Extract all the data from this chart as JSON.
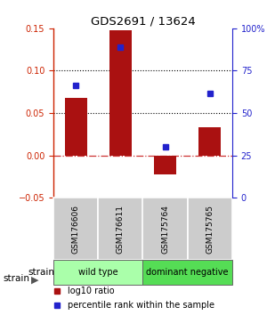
{
  "title": "GDS2691 / 13624",
  "categories": [
    "GSM176606",
    "GSM176611",
    "GSM175764",
    "GSM175765"
  ],
  "log10_ratio": [
    0.068,
    0.148,
    -0.022,
    0.033
  ],
  "percentile_rank": [
    66.5,
    89.0,
    30.0,
    61.5
  ],
  "ylim_left": [
    -0.05,
    0.15
  ],
  "ylim_right": [
    0,
    100
  ],
  "yticks_left": [
    -0.05,
    0,
    0.05,
    0.1,
    0.15
  ],
  "yticks_right": [
    0,
    25,
    50,
    75,
    100
  ],
  "bar_color": "#aa1111",
  "dot_color": "#2222cc",
  "bar_width": 0.5,
  "groups": [
    {
      "label": "wild type",
      "indices": [
        0,
        1
      ],
      "color": "#aaffaa"
    },
    {
      "label": "dominant negative",
      "indices": [
        2,
        3
      ],
      "color": "#55dd55"
    }
  ],
  "strain_label": "strain",
  "legend_bar_label": "log10 ratio",
  "legend_dot_label": "percentile rank within the sample",
  "background_color": "#ffffff",
  "zero_line_color": "#cc3333",
  "dotted_line_color": "#000000",
  "left_axis_color": "#cc2200",
  "right_axis_color": "#2222cc"
}
